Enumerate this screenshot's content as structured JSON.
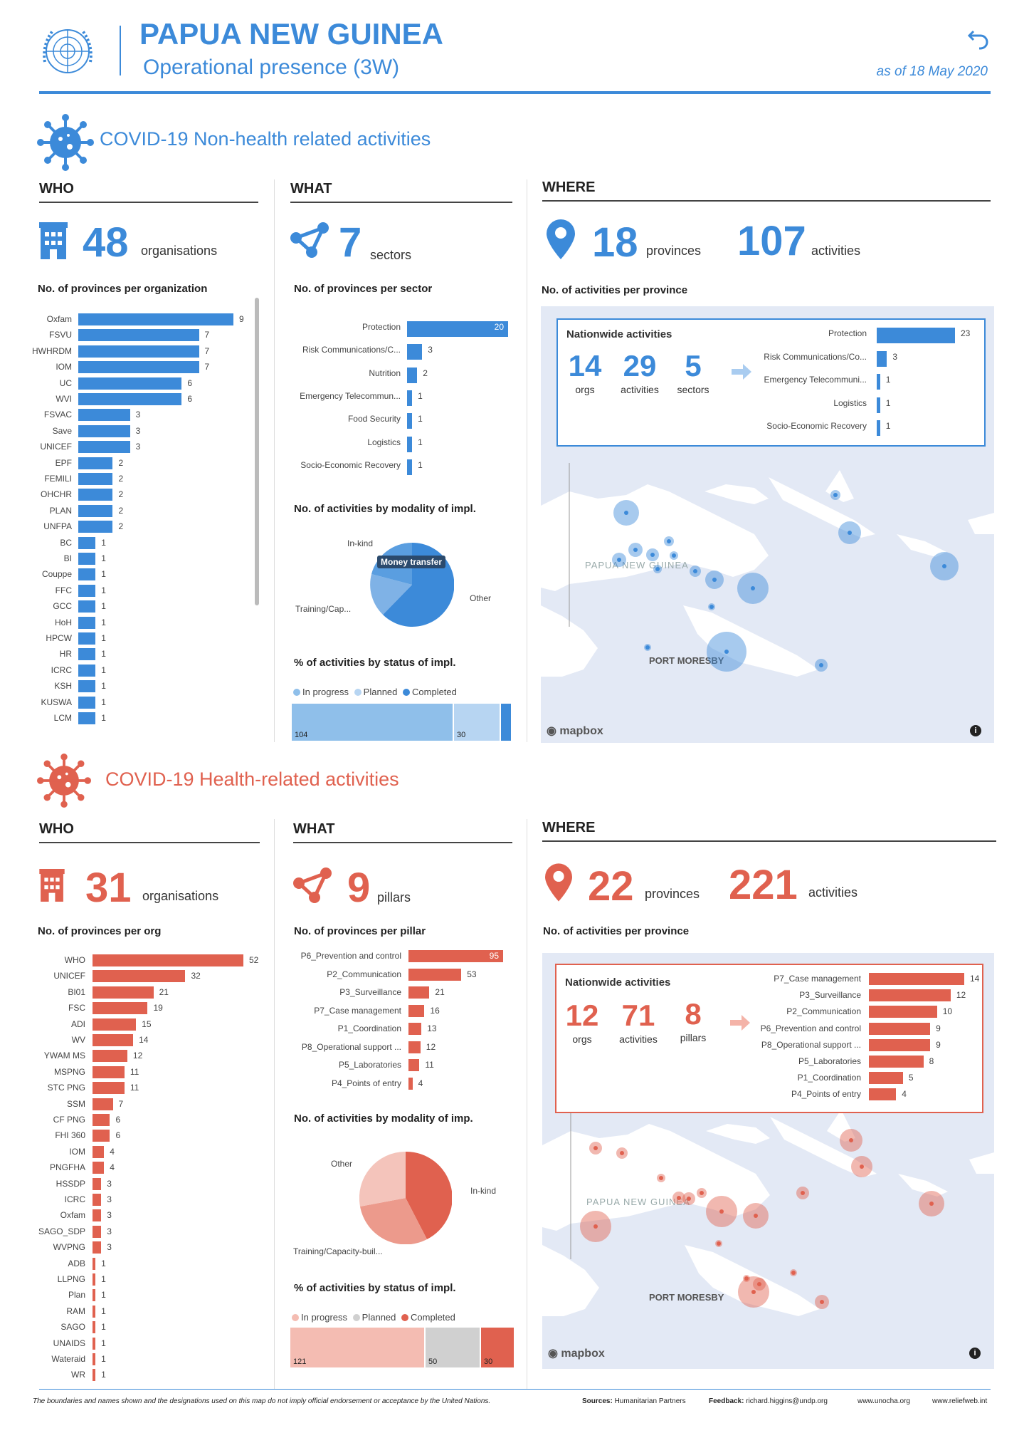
{
  "header": {
    "title": "PAPUA NEW GUINEA",
    "subtitle": "Operational presence (3W)",
    "as_of": "as of 18 May 2020"
  },
  "colors": {
    "blue": "#3c8ad9",
    "red": "#e0614f",
    "light_blue": "#8fbfea",
    "light_red": "#f4bcb2"
  },
  "nonhealth": {
    "section_title": "COVID-19 Non-health related activities",
    "who": {
      "heading": "WHO",
      "count": "48",
      "count_label": "organisations",
      "chart_title": "No. of provinces per organization",
      "labels": [
        "Oxfam",
        "FSVU",
        "HWHRDM",
        "IOM",
        "UC",
        "WVI",
        "FSVAC",
        "Save",
        "UNICEF",
        "EPF",
        "FEMILI",
        "OHCHR",
        "PLAN",
        "UNFPA",
        "BC",
        "BI",
        "Couppe",
        "FFC",
        "GCC",
        "HoH",
        "HPCW",
        "HR",
        "ICRC",
        "KSH",
        "KUSWA",
        "LCM"
      ],
      "values": [
        9,
        7,
        7,
        7,
        6,
        6,
        3,
        3,
        3,
        2,
        2,
        2,
        2,
        2,
        1,
        1,
        1,
        1,
        1,
        1,
        1,
        1,
        1,
        1,
        1,
        1
      ]
    },
    "what": {
      "heading": "WHAT",
      "count": "7",
      "count_label": "sectors",
      "chart_title": "No. of provinces per sector",
      "labels": [
        "Protection",
        "Risk Communications/C...",
        "Nutrition",
        "Emergency Telecommun...",
        "Food Security",
        "Logistics",
        "Socio-Economic Recovery"
      ],
      "values": [
        20,
        3,
        2,
        1,
        1,
        1,
        1
      ],
      "modality_title": "No. of activities by modality of impl.",
      "modality": {
        "labels": [
          "In-kind",
          "Money transfer",
          "Other",
          "Training/Cap..."
        ],
        "tooltip": "Money transfer"
      },
      "status_title": "% of activities by status of impl.",
      "status_legend": [
        "In progress",
        "Planned",
        "Completed"
      ],
      "status_values": [
        "104",
        "30",
        ""
      ]
    },
    "where": {
      "heading": "WHERE",
      "provinces": "18",
      "provinces_label": "provinces",
      "activities": "107",
      "activities_label": "activities",
      "chart_title": "No. of activities per province",
      "nationwide": {
        "title": "Nationwide activities",
        "orgs": "14",
        "orgs_label": "orgs",
        "activities": "29",
        "activities_label": "activities",
        "sectors": "5",
        "sectors_label": "sectors",
        "labels": [
          "Protection",
          "Risk Communications/Co...",
          "Emergency Telecommuni...",
          "Logistics",
          "Socio-Economic Recovery"
        ],
        "values": [
          23,
          3,
          1,
          1,
          1
        ]
      },
      "map_country": "PAPUA NEW GUINEA",
      "map_city": "PORT MORESBY",
      "mapbox": "mapbox"
    }
  },
  "health": {
    "section_title": "COVID-19 Health-related activities",
    "who": {
      "heading": "WHO",
      "count": "31",
      "count_label": "organisations",
      "chart_title": "No. of provinces per org",
      "labels": [
        "WHO",
        "UNICEF",
        "BI01",
        "FSC",
        "ADI",
        "WV",
        "YWAM MS",
        "MSPNG",
        "STC PNG",
        "SSM",
        "CF PNG",
        "FHI 360",
        "IOM",
        "PNGFHA",
        "HSSDP",
        "ICRC",
        "Oxfam",
        "SAGO_SDP",
        "WVPNG",
        "ADB",
        "LLPNG",
        "Plan",
        "RAM",
        "SAGO",
        "UNAIDS",
        "Wateraid",
        "WR"
      ],
      "values": [
        52,
        32,
        21,
        19,
        15,
        14,
        12,
        11,
        11,
        7,
        6,
        6,
        4,
        4,
        3,
        3,
        3,
        3,
        3,
        1,
        1,
        1,
        1,
        1,
        1,
        1,
        1
      ]
    },
    "what": {
      "heading": "WHAT",
      "count": "9",
      "count_label": "pillars",
      "chart_title": "No. of provinces per pillar",
      "labels": [
        "P6_Prevention and control",
        "P2_Communication",
        "P3_Surveillance",
        "P7_Case management",
        "P1_Coordination",
        "P8_Operational support ...",
        "P5_Laboratories",
        "P4_Points of entry"
      ],
      "values": [
        95,
        53,
        21,
        16,
        13,
        12,
        11,
        4
      ],
      "modality_title": "No. of activities by modality of imp.",
      "modality": {
        "labels": [
          "Other",
          "In-kind",
          "Training/Capacity-buil..."
        ]
      },
      "status_title": "% of activities by status of impl.",
      "status_legend": [
        "In progress",
        "Planned",
        "Completed"
      ],
      "status_values": [
        "121",
        "50",
        "30"
      ]
    },
    "where": {
      "heading": "WHERE",
      "provinces": "22",
      "provinces_label": "provinces",
      "activities": "221",
      "activities_label": "activities",
      "chart_title": "No. of activities per province",
      "nationwide": {
        "title": "Nationwide activities",
        "orgs": "12",
        "orgs_label": "orgs",
        "activities": "71",
        "activities_label": "activities",
        "pillars": "8",
        "pillars_label": "pillars",
        "labels": [
          "P7_Case management",
          "P3_Surveillance",
          "P2_Communication",
          "P6_Prevention and control",
          "P8_Operational support ...",
          "P5_Laboratories",
          "P1_Coordination",
          "P4_Points of entry"
        ],
        "values": [
          14,
          12,
          10,
          9,
          9,
          8,
          5,
          4
        ]
      },
      "map_country": "PAPUA NEW GUINEA",
      "map_city": "PORT MORESBY",
      "mapbox": "mapbox"
    }
  },
  "footer": {
    "disclaimer": "The boundaries and names shown and the designations used on this map do not imply official endorsement or acceptance by the United Nations.",
    "sources_label": "Sources:",
    "sources": "Humanitarian Partners",
    "feedback_label": "Feedback:",
    "feedback": "richard.higgins@undp.org",
    "site1": "www.unocha.org",
    "site2": "www.reliefweb.int"
  }
}
